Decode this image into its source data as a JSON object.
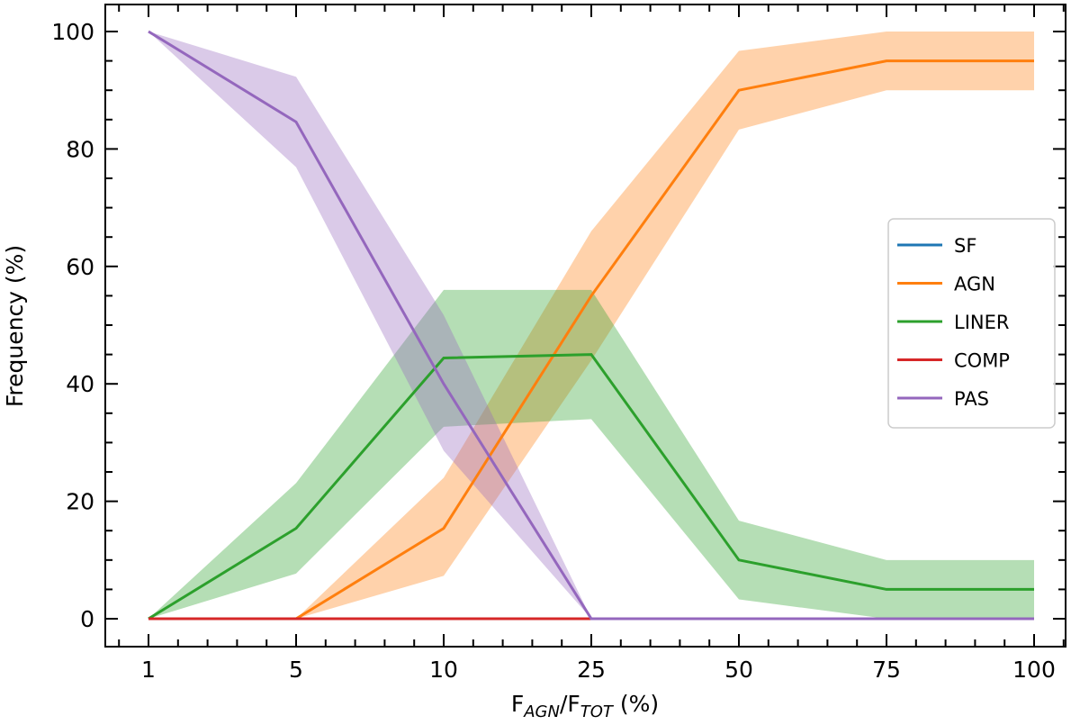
{
  "chart_data": {
    "type": "line",
    "title": "",
    "xlabel_main": "F",
    "xlabel_sub1": "AGN",
    "xlabel_mid": "/F",
    "xlabel_sub2": "TOT",
    "xlabel_tail": " (%)",
    "ylabel": "Frequency (%)",
    "categories": [
      "1",
      "5",
      "10",
      "25",
      "50",
      "75",
      "100"
    ],
    "ylim": [
      -4.75,
      104.6
    ],
    "yticks": [
      0,
      20,
      40,
      60,
      80,
      100
    ],
    "grid": false,
    "legend_placement": "center-right",
    "series": [
      {
        "name": "SF",
        "color": "#1f77b4",
        "values": [
          0,
          0,
          0,
          0,
          0,
          0,
          0
        ],
        "upper": null,
        "lower": null
      },
      {
        "name": "AGN",
        "color": "#ff7f0e",
        "values": [
          0,
          0,
          15.4,
          55,
          90,
          95,
          95
        ],
        "upper": [
          0,
          0,
          24,
          66,
          96.7,
          100,
          100
        ],
        "lower": [
          0,
          0,
          7.3,
          44,
          83.3,
          90,
          90
        ]
      },
      {
        "name": "LINER",
        "color": "#2ca02c",
        "values": [
          0,
          15.4,
          44.4,
          45,
          10,
          5,
          5
        ],
        "upper": [
          0,
          23.1,
          56,
          56,
          16.7,
          10,
          10
        ],
        "lower": [
          0,
          7.7,
          32.7,
          34,
          3.3,
          0,
          0
        ]
      },
      {
        "name": "COMP",
        "color": "#d62728",
        "values": [
          0,
          0,
          0,
          0,
          0,
          0,
          0
        ],
        "upper": null,
        "lower": null
      },
      {
        "name": "PAS",
        "color": "#9467bd",
        "values": [
          100,
          84.6,
          40,
          0,
          0,
          0,
          0
        ],
        "upper": [
          100,
          92.3,
          51.7,
          0,
          0,
          0,
          0
        ],
        "lower": [
          100,
          76.9,
          28.6,
          0,
          0,
          0,
          0
        ]
      }
    ]
  }
}
